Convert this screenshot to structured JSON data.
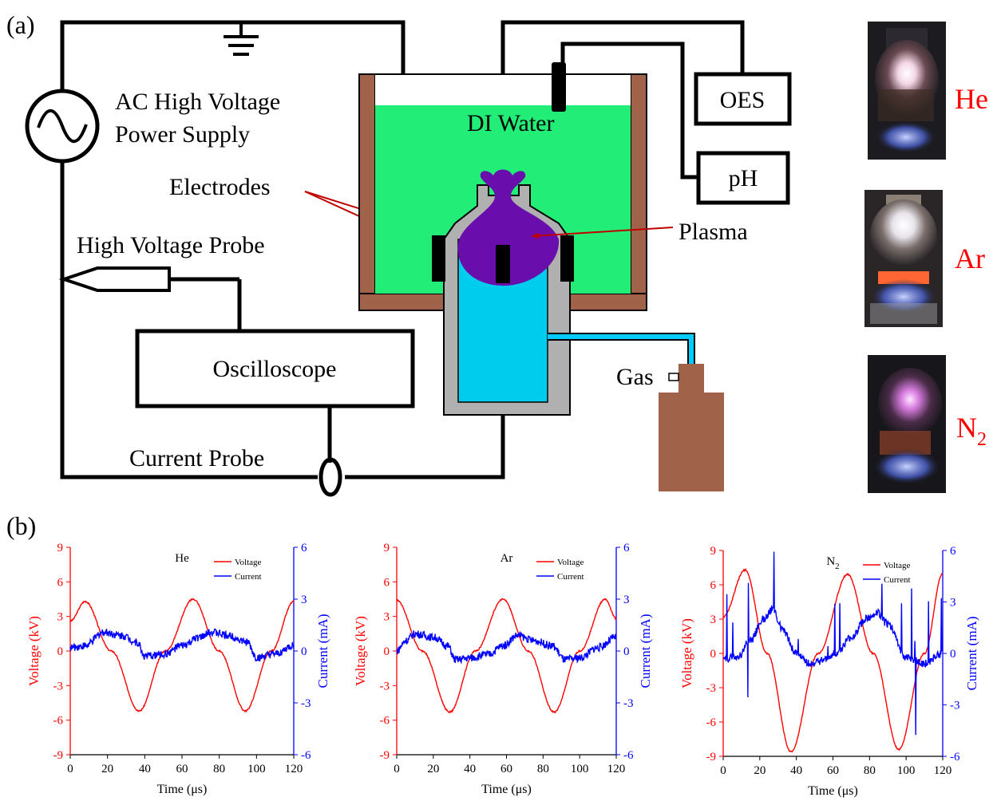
{
  "panel_a_label": "(a)",
  "panel_b_label": "(b)",
  "power_supply": {
    "line1": "AC High Voltage",
    "line2": "Power Supply"
  },
  "labels": {
    "electrodes": "Electrodes",
    "hv_probe": "High Voltage Probe",
    "oscilloscope": "Oscilloscope",
    "current_probe": "Current Probe",
    "di_water": "DI Water",
    "plasma": "Plasma",
    "oes": "OES",
    "ph": "pH",
    "gas": "Gas"
  },
  "photos": [
    {
      "gas": "He",
      "color": "#ff0000"
    },
    {
      "gas": "Ar",
      "color": "#ff0000"
    },
    {
      "gas": "N",
      "sub": "2",
      "color": "#ff0000"
    }
  ],
  "colors": {
    "voltage": "#ff0000",
    "current": "#0000ff",
    "water": "#22ee77",
    "container": "#a0634a",
    "gas_tube": "#00ccff",
    "plasma": "#6a0dad",
    "vessel": "#b0b0b0"
  },
  "chart_data": [
    {
      "type": "line",
      "title": "He",
      "xlabel": "Time (μs)",
      "ylabel_left": "Voltage (kV)",
      "ylabel_right": "Current (mA)",
      "x_ticks": [
        "0",
        "20",
        "40",
        "60",
        "80",
        "100",
        "120"
      ],
      "y_left_ticks": [
        "9",
        "6",
        "3",
        "0",
        "-3",
        "-6",
        "-9"
      ],
      "y_right_ticks": [
        "6",
        "3",
        "0",
        "-3",
        "-6"
      ],
      "xlim": [
        0,
        120
      ],
      "ylim_left": [
        -9,
        9
      ],
      "ylim_right": [
        -6,
        6
      ],
      "legend": [
        "Voltage",
        "Current"
      ],
      "series": [
        {
          "name": "Voltage",
          "axis": "left",
          "x": [
            0,
            8,
            22,
            37,
            51,
            66,
            80,
            94,
            108,
            120
          ],
          "y": [
            2.6,
            4.3,
            0,
            -5.2,
            0,
            4.5,
            0,
            -5.2,
            0,
            4.3
          ]
        },
        {
          "name": "Current",
          "axis": "right",
          "x": [
            0,
            8,
            18,
            28,
            36,
            40,
            50,
            60,
            70,
            76,
            85,
            95,
            100,
            110,
            120
          ],
          "y": [
            0.2,
            0.3,
            1.1,
            0.9,
            0.5,
            -0.3,
            -0.2,
            0.3,
            0.8,
            1.1,
            0.9,
            0.5,
            -0.4,
            -0.2,
            0.3
          ]
        }
      ]
    },
    {
      "type": "line",
      "title": "Ar",
      "xlabel": "Time (μs)",
      "ylabel_left": "Voltage (kV)",
      "ylabel_right": "Current (mA)",
      "x_ticks": [
        "0",
        "20",
        "40",
        "60",
        "80",
        "100",
        "120"
      ],
      "y_left_ticks": [
        "9",
        "6",
        "3",
        "0",
        "-3",
        "-6",
        "-9"
      ],
      "y_right_ticks": [
        "6",
        "3",
        "0",
        "-3",
        "-6"
      ],
      "xlim": [
        0,
        120
      ],
      "ylim_left": [
        -9,
        9
      ],
      "ylim_right": [
        -6,
        6
      ],
      "legend": [
        "Voltage",
        "Current"
      ],
      "series": [
        {
          "name": "Voltage",
          "axis": "left",
          "x": [
            0,
            14,
            29,
            43,
            58,
            72,
            86,
            100,
            114,
            120
          ],
          "y": [
            4.4,
            0,
            -5.3,
            0,
            4.5,
            0,
            -5.3,
            0,
            4.5,
            2.8
          ]
        },
        {
          "name": "Current",
          "axis": "right",
          "x": [
            0,
            5,
            10,
            20,
            28,
            32,
            40,
            50,
            58,
            66,
            75,
            85,
            92,
            100,
            110,
            120
          ],
          "y": [
            0,
            0.6,
            1.0,
            0.8,
            0.3,
            -0.5,
            -0.4,
            -0.2,
            0.3,
            0.9,
            0.6,
            0.3,
            -0.5,
            -0.4,
            0.2,
            0.8
          ]
        }
      ]
    },
    {
      "type": "line",
      "title": "N2",
      "xlabel": "Time (μs)",
      "ylabel_left": "Voltage (kV)",
      "ylabel_right": "Current (mA)",
      "x_ticks": [
        "0",
        "20",
        "40",
        "60",
        "80",
        "100",
        "120"
      ],
      "y_left_ticks": [
        "9",
        "6",
        "3",
        "0",
        "-3",
        "-6",
        "-9"
      ],
      "y_right_ticks": [
        "6",
        "3",
        "0",
        "-3",
        "-6"
      ],
      "xlim": [
        0,
        120
      ],
      "ylim_left": [
        -9,
        9
      ],
      "ylim_right": [
        -6,
        6
      ],
      "legend": [
        "Voltage",
        "Current"
      ],
      "series": [
        {
          "name": "Voltage",
          "axis": "left",
          "x": [
            0,
            12,
            24,
            37,
            52,
            68,
            82,
            96,
            110,
            120
          ],
          "y": [
            3.2,
            7.3,
            0,
            -8.6,
            0,
            6.9,
            0,
            -8.4,
            0,
            7.0
          ]
        },
        {
          "name": "Current",
          "axis": "right",
          "x": [
            0,
            8,
            15,
            22,
            27,
            32,
            40,
            48,
            55,
            62,
            70,
            78,
            84,
            90,
            100,
            110,
            120
          ],
          "y": [
            -0.3,
            -0.2,
            0.8,
            2.0,
            2.6,
            1.5,
            0,
            -0.6,
            -0.4,
            0,
            0.9,
            2.0,
            2.4,
            1.7,
            -0.2,
            -0.6,
            0
          ]
        }
      ]
    }
  ]
}
